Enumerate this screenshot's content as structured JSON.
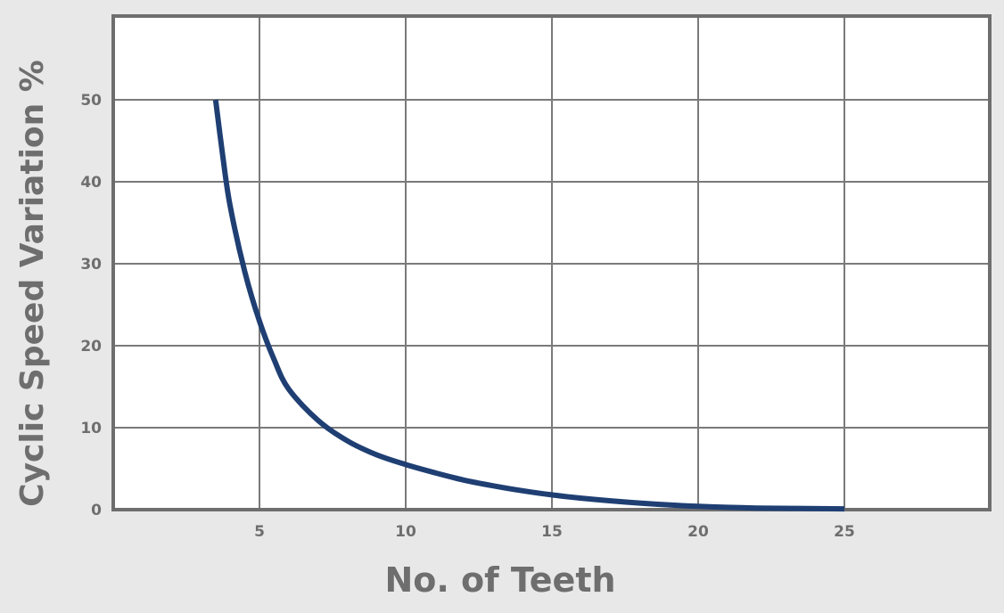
{
  "chart_data": {
    "type": "line",
    "title": "",
    "xlabel": "No. of Teeth",
    "ylabel": "Cyclic Speed Variation %",
    "xlim": [
      0,
      30
    ],
    "ylim": [
      0,
      50
    ],
    "x_ticks": [
      5,
      10,
      15,
      20,
      25
    ],
    "y_ticks": [
      0,
      10,
      20,
      30,
      40,
      50
    ],
    "grid": true,
    "legend": "none",
    "series": [
      {
        "color": "#1f3f73",
        "x": [
          3.5,
          3.75,
          4,
          4.5,
          5,
          5.5,
          6,
          7,
          8,
          9,
          10,
          11,
          12,
          13,
          14,
          15,
          16,
          18,
          20,
          22,
          25
        ],
        "y": [
          50,
          43,
          37,
          29,
          23,
          18.3,
          14.7,
          10.9,
          8.4,
          6.7,
          5.5,
          4.5,
          3.6,
          2.9,
          2.3,
          1.8,
          1.4,
          0.8,
          0.4,
          0.2,
          0.1
        ]
      }
    ]
  },
  "colors": {
    "background": "#e8e8e9",
    "plot_background": "#ffffff",
    "frame": "#6e6e6e",
    "grid": "#7a7a7a",
    "text": "#6e6e6e",
    "line": "#1f3f73"
  }
}
